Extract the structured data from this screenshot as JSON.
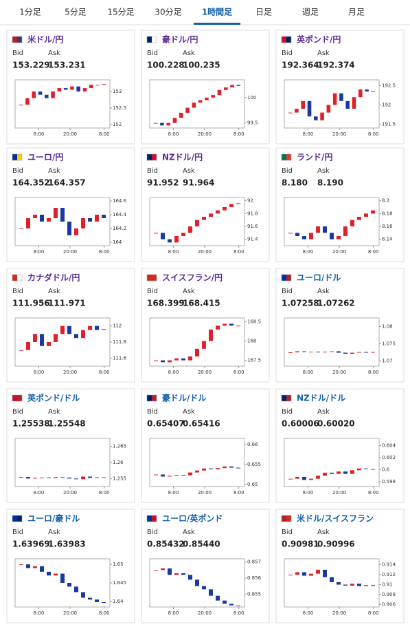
{
  "tabs": {
    "items": [
      "1分足",
      "5分足",
      "15分足",
      "30分足",
      "1時間足",
      "日足",
      "週足",
      "月足"
    ],
    "active": 4
  },
  "bid_label": "Bid",
  "ask_label": "Ask",
  "time_labels": [
    "8:00",
    "20:00",
    "8:00"
  ],
  "pairs": [
    {
      "name": "米ドル/円",
      "color": "#5b2c91",
      "flag": [
        "#b22234",
        "#3c3b6e"
      ],
      "bid": "153.229",
      "ask": "153.231",
      "ylim": [
        151.9,
        153.35
      ],
      "yticks": [
        153,
        152.5,
        152
      ],
      "closes": [
        152.6,
        152.8,
        153.0,
        152.9,
        152.8,
        153.0,
        153.1,
        153.05,
        153.15,
        153.0,
        153.1,
        153.2,
        153.2,
        153.22
      ]
    },
    {
      "name": "豪ドル/円",
      "color": "#5b2c91",
      "flag": [
        "#012169",
        "#ffffff"
      ],
      "bid": "100.228",
      "ask": "100.235",
      "ylim": [
        99.4,
        100.35
      ],
      "yticks": [
        100,
        99.5
      ],
      "closes": [
        99.5,
        99.45,
        99.5,
        99.6,
        99.7,
        99.8,
        99.9,
        99.95,
        100.0,
        100.05,
        100.15,
        100.2,
        100.25,
        100.23
      ]
    },
    {
      "name": "英ポンド/円",
      "color": "#5b2c91",
      "flag": [
        "#c8102e",
        "#012169"
      ],
      "bid": "192.364",
      "ask": "192.374",
      "ylim": [
        191.4,
        192.65
      ],
      "yticks": [
        192.5,
        192,
        191.5
      ],
      "closes": [
        191.8,
        191.9,
        192.1,
        191.7,
        191.6,
        191.8,
        192.0,
        192.3,
        192.1,
        191.9,
        192.2,
        192.4,
        192.35,
        192.36
      ]
    },
    {
      "name": "ユーロ/円",
      "color": "#5b2c91",
      "flag": [
        "#003399",
        "#ffcc00"
      ],
      "bid": "164.352",
      "ask": "164.357",
      "ylim": [
        163.95,
        164.65
      ],
      "yticks": [
        164.6,
        164.4,
        164.2,
        164
      ],
      "closes": [
        164.2,
        164.35,
        164.4,
        164.3,
        164.35,
        164.5,
        164.3,
        164.1,
        164.2,
        164.35,
        164.3,
        164.4,
        164.35
      ]
    },
    {
      "name": "NZドル/円",
      "color": "#5b2c91",
      "flag": [
        "#012169",
        "#c8102e"
      ],
      "bid": "91.952",
      "ask": "91.964",
      "ylim": [
        91.3,
        92.05
      ],
      "yticks": [
        92,
        91.8,
        91.6,
        91.4
      ],
      "closes": [
        91.5,
        91.4,
        91.35,
        91.45,
        91.5,
        91.6,
        91.7,
        91.75,
        91.8,
        91.85,
        91.9,
        91.95,
        91.96
      ]
    },
    {
      "name": "ランド/円",
      "color": "#5b2c91",
      "flag": [
        "#007a4d",
        "#de3831"
      ],
      "bid": "8.180",
      "ask": "8.190",
      "ylim": [
        8.13,
        8.205
      ],
      "yticks": [
        8.2,
        8.18,
        8.16,
        8.14
      ],
      "closes": [
        8.15,
        8.145,
        8.14,
        8.15,
        8.16,
        8.15,
        8.14,
        8.145,
        8.16,
        8.17,
        8.175,
        8.18,
        8.185
      ]
    },
    {
      "name": "カナダドル/円",
      "color": "#5b2c91",
      "flag": [
        "#d52b1e",
        "#ffffff"
      ],
      "bid": "111.956",
      "ask": "111.971",
      "ylim": [
        111.5,
        112.1
      ],
      "yticks": [
        112,
        111.8,
        111.6
      ],
      "closes": [
        111.7,
        111.8,
        111.9,
        111.75,
        111.8,
        111.9,
        112.0,
        111.9,
        111.85,
        111.95,
        112.0,
        111.95,
        111.96
      ]
    },
    {
      "name": "スイスフラン/円",
      "color": "#5b2c91",
      "flag": [
        "#d52b1e",
        "#d52b1e"
      ],
      "bid": "168.399",
      "ask": "168.415",
      "ylim": [
        167.35,
        168.6
      ],
      "yticks": [
        168.5,
        168,
        167.5
      ],
      "closes": [
        167.5,
        167.45,
        167.5,
        167.55,
        167.5,
        167.6,
        167.8,
        168.0,
        168.3,
        168.4,
        168.45,
        168.4,
        168.4
      ]
    },
    {
      "name": "ユーロ/ドル",
      "color": "#1560a8",
      "flag": [
        "#003399",
        "#b22234"
      ],
      "bid": "1.07258",
      "ask": "1.07262",
      "ylim": [
        1.0685,
        1.0825
      ],
      "yticks": [
        1.08,
        1.075,
        1.07
      ],
      "closes": [
        1.0725,
        1.0728,
        1.0726,
        1.0727,
        1.0726,
        1.0727,
        1.0728,
        1.0724,
        1.0721,
        1.0724,
        1.0726,
        1.0725,
        1.0726
      ]
    },
    {
      "name": "英ポンド/ドル",
      "color": "#1560a8",
      "flag": [
        "#c8102e",
        "#b22234"
      ],
      "bid": "1.25538",
      "ask": "1.25548",
      "ylim": [
        1.2525,
        1.2675
      ],
      "yticks": [
        1.265,
        1.26,
        1.255
      ],
      "closes": [
        1.2555,
        1.255,
        1.2552,
        1.2553,
        1.2551,
        1.2554,
        1.2553,
        1.255,
        1.2548,
        1.2556,
        1.2552,
        1.2554,
        1.2554
      ]
    },
    {
      "name": "豪ドル/ドル",
      "color": "#1560a8",
      "flag": [
        "#012169",
        "#b22234"
      ],
      "bid": "0.65407",
      "ask": "0.65416",
      "ylim": [
        0.6495,
        0.6615
      ],
      "yticks": [
        0.66,
        0.655,
        0.65
      ],
      "closes": [
        0.6525,
        0.652,
        0.6522,
        0.6524,
        0.6523,
        0.653,
        0.6535,
        0.654,
        0.6538,
        0.6541,
        0.6545,
        0.6542,
        0.6541
      ]
    },
    {
      "name": "NZドル/ドル",
      "color": "#1560a8",
      "flag": [
        "#012169",
        "#b22234"
      ],
      "bid": "0.60006",
      "ask": "0.60020",
      "ylim": [
        0.5972,
        0.6052
      ],
      "yticks": [
        0.604,
        0.602,
        0.6,
        0.598
      ],
      "closes": [
        0.5985,
        0.5988,
        0.5983,
        0.5985,
        0.599,
        0.5995,
        0.5993,
        0.5997,
        0.5993,
        0.5999,
        0.6002,
        0.6001,
        0.6001
      ]
    },
    {
      "name": "ユーロ/豪ドル",
      "color": "#1560a8",
      "flag": [
        "#003399",
        "#012169"
      ],
      "bid": "1.63969",
      "ask": "1.63983",
      "ylim": [
        1.6385,
        1.6515
      ],
      "yticks": [
        1.65,
        1.645,
        1.64
      ],
      "closes": [
        1.65,
        1.649,
        1.6495,
        1.648,
        1.647,
        1.6475,
        1.645,
        1.644,
        1.6425,
        1.641,
        1.6405,
        1.6398,
        1.6397
      ]
    },
    {
      "name": "ユーロ/英ポンド",
      "color": "#1560a8",
      "flag": [
        "#003399",
        "#c8102e"
      ],
      "bid": "0.85432",
      "ask": "0.85440",
      "ylim": [
        0.8542,
        0.8572
      ],
      "yticks": [
        0.857,
        0.856,
        0.855
      ],
      "closes": [
        0.8565,
        0.8566,
        0.8562,
        0.8563,
        0.8562,
        0.8559,
        0.8555,
        0.8553,
        0.8549,
        0.8546,
        0.8544,
        0.8543,
        0.8543
      ]
    },
    {
      "name": "米ドル/スイスフラン",
      "color": "#1560a8",
      "flag": [
        "#b22234",
        "#d52b1e"
      ],
      "bid": "0.90981",
      "ask": "0.90996",
      "ylim": [
        0.9055,
        0.9152
      ],
      "yticks": [
        0.914,
        0.912,
        0.91,
        0.908,
        0.906
      ],
      "closes": [
        0.912,
        0.9125,
        0.9118,
        0.9122,
        0.913,
        0.9115,
        0.9105,
        0.91,
        0.9098,
        0.9102,
        0.9097,
        0.9099,
        0.9098
      ]
    }
  ]
}
